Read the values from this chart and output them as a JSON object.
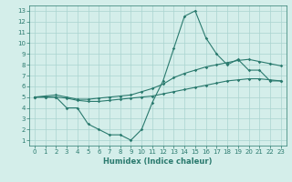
{
  "xlabel": "Humidex (Indice chaleur)",
  "x": [
    0,
    1,
    2,
    3,
    4,
    5,
    6,
    7,
    8,
    9,
    10,
    11,
    12,
    13,
    14,
    15,
    16,
    17,
    18,
    19,
    20,
    21,
    22,
    23
  ],
  "line1": [
    5.0,
    5.0,
    5.0,
    4.0,
    4.0,
    2.5,
    2.0,
    1.5,
    1.5,
    1.0,
    2.0,
    4.5,
    6.5,
    9.5,
    12.5,
    13.0,
    10.5,
    9.0,
    8.0,
    8.5,
    7.5,
    7.5,
    6.5,
    6.5
  ],
  "line2": [
    5.0,
    5.1,
    5.2,
    5.0,
    4.8,
    4.8,
    4.9,
    5.0,
    5.1,
    5.2,
    5.5,
    5.8,
    6.2,
    6.8,
    7.2,
    7.5,
    7.8,
    8.0,
    8.2,
    8.4,
    8.5,
    8.3,
    8.1,
    7.9
  ],
  "line3": [
    5.0,
    5.0,
    5.0,
    4.9,
    4.7,
    4.6,
    4.6,
    4.7,
    4.8,
    4.9,
    5.0,
    5.1,
    5.3,
    5.5,
    5.7,
    5.9,
    6.1,
    6.3,
    6.5,
    6.6,
    6.7,
    6.7,
    6.6,
    6.5
  ],
  "line_color": "#2a7a6e",
  "bg_color": "#d4eeea",
  "grid_color": "#aad4cf",
  "xlim": [
    -0.5,
    23.5
  ],
  "ylim": [
    0.5,
    13.5
  ],
  "xticks": [
    0,
    1,
    2,
    3,
    4,
    5,
    6,
    7,
    8,
    9,
    10,
    11,
    12,
    13,
    14,
    15,
    16,
    17,
    18,
    19,
    20,
    21,
    22,
    23
  ],
  "yticks": [
    1,
    2,
    3,
    4,
    5,
    6,
    7,
    8,
    9,
    10,
    11,
    12,
    13
  ],
  "markersize": 1.8,
  "linewidth": 0.8,
  "tick_fontsize": 5.0,
  "xlabel_fontsize": 6.0
}
